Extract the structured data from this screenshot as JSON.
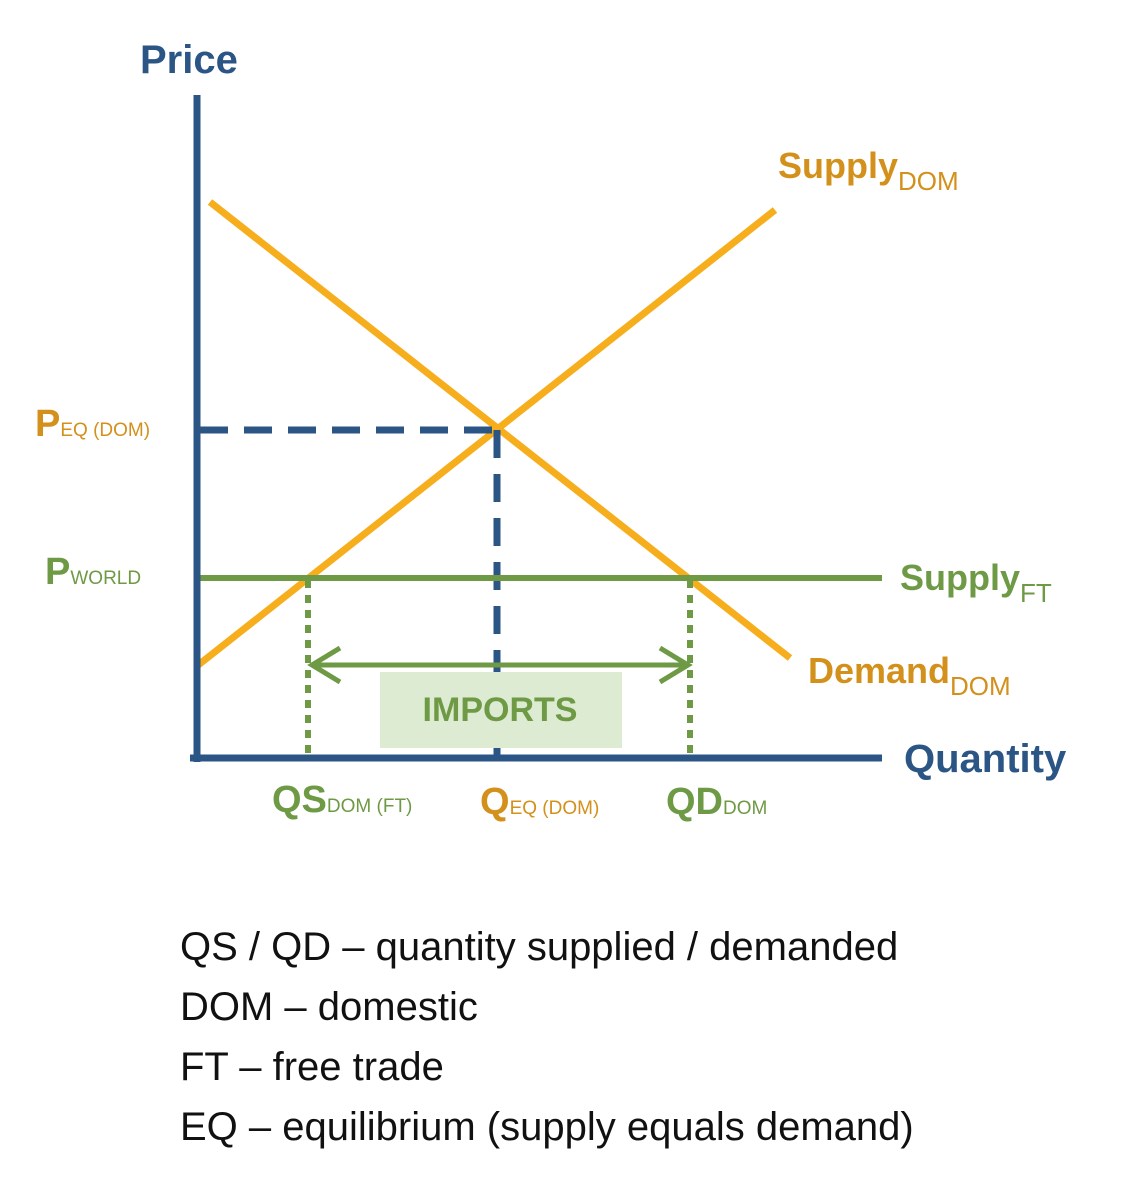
{
  "axes": {
    "y_label": "Price",
    "x_label": "Quantity"
  },
  "curves": {
    "supply_dom": {
      "main": "Supply",
      "sub": "DOM"
    },
    "demand_dom": {
      "main": "Demand",
      "sub": "DOM"
    },
    "supply_ft": {
      "main": "Supply",
      "sub": "FT"
    }
  },
  "prices": {
    "eq_dom": {
      "main": "P",
      "sub": "EQ (DOM)"
    },
    "world": {
      "main": "P",
      "sub": "WORLD"
    }
  },
  "quantities": {
    "qs_dom_ft": {
      "main": "QS",
      "sub": "DOM (FT)"
    },
    "q_eq_dom": {
      "main": "Q",
      "sub": "EQ (DOM)"
    },
    "qd_dom": {
      "main": "QD",
      "sub": "DOM"
    }
  },
  "imports_label": "IMPORTS",
  "legend": [
    "QS / QD – quantity supplied / demanded",
    "DOM – domestic",
    "FT – free trade",
    "EQ – equilibrium (supply equals demand)"
  ]
}
